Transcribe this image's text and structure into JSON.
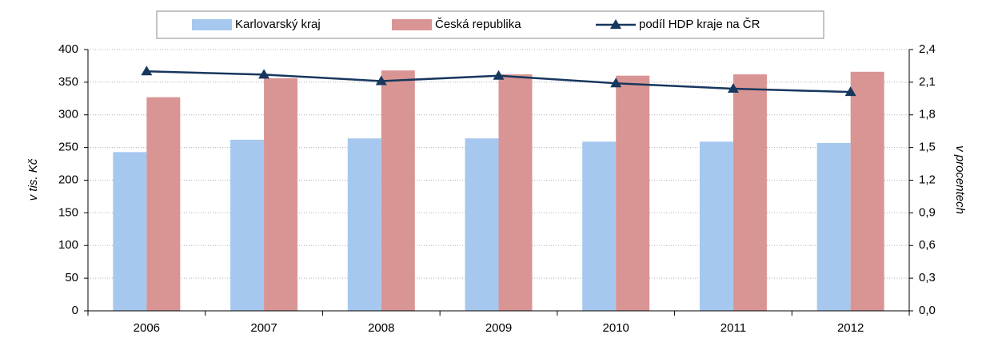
{
  "chart_data": {
    "type": "bar",
    "y_label": "v tis. Kč",
    "y2_label": "v procentech",
    "categories": [
      "2006",
      "2007",
      "2008",
      "2009",
      "2010",
      "2011",
      "2012"
    ],
    "series": [
      {
        "name": "Karlovarský kraj",
        "color": "#a6c8ef",
        "type": "bar",
        "values": [
          243,
          262,
          264,
          264,
          259,
          259,
          257
        ]
      },
      {
        "name": "Česká republika",
        "color": "#d99594",
        "type": "bar",
        "values": [
          327,
          356,
          368,
          362,
          360,
          362,
          366
        ]
      },
      {
        "name": "podíl HDP kraje na ČR",
        "color": "#17375e",
        "type": "line",
        "axis": "y2",
        "values": [
          2.2,
          2.17,
          2.11,
          2.16,
          2.09,
          2.04,
          2.01
        ]
      }
    ],
    "ylim": [
      0,
      400
    ],
    "yticks": [
      0,
      50,
      100,
      150,
      200,
      250,
      300,
      350,
      400
    ],
    "y2lim": [
      0,
      2.4
    ],
    "y2ticks": [
      {
        "value": 0,
        "label": "0,0"
      },
      {
        "value": 0.3,
        "label": "0,3"
      },
      {
        "value": 0.6,
        "label": "0,6"
      },
      {
        "value": 0.9,
        "label": "0,9"
      },
      {
        "value": 1.2,
        "label": "1,2"
      },
      {
        "value": 1.5,
        "label": "1,5"
      },
      {
        "value": 1.8,
        "label": "1,8"
      },
      {
        "value": 2.1,
        "label": "2,1"
      },
      {
        "value": 2.4,
        "label": "2,4"
      }
    ],
    "grid": true,
    "legend": "top"
  }
}
